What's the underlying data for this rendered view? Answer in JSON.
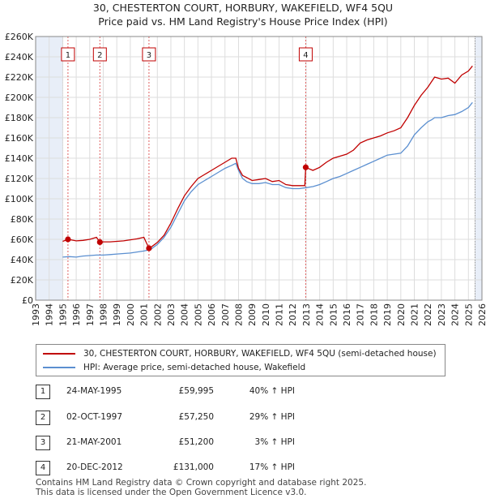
{
  "title_line1": "30, CHESTERTON COURT, HORBURY, WAKEFIELD, WF4 5QU",
  "title_line2": "Price paid vs. HM Land Registry's House Price Index (HPI)",
  "colors": {
    "property": "#c00000",
    "hpi": "#5b8fd0",
    "shade": "#e8eef8",
    "grid": "#dddddd",
    "sale_line": "#e06060"
  },
  "legend": {
    "property_label": "30, CHESTERTON COURT, HORBURY, WAKEFIELD, WF4 5QU (semi-detached house)",
    "hpi_label": "HPI: Average price, semi-detached house, Wakefield"
  },
  "sales": [
    {
      "num": "1",
      "date": "24-MAY-1995",
      "price": "£59,995",
      "hpi": "40% ↑ HPI"
    },
    {
      "num": "2",
      "date": "02-OCT-1997",
      "price": "£57,250",
      "hpi": "29% ↑ HPI"
    },
    {
      "num": "3",
      "date": "21-MAY-2001",
      "price": "£51,200",
      "hpi": "3% ↑ HPI"
    },
    {
      "num": "4",
      "date": "20-DEC-2012",
      "price": "£131,000",
      "hpi": "17% ↑ HPI"
    }
  ],
  "footer_line1": "Contains HM Land Registry data © Crown copyright and database right 2025.",
  "footer_line2": "This data is licensed under the Open Government Licence v3.0.",
  "chart_data": {
    "type": "line",
    "title": "30, CHESTERTON COURT, HORBURY, WAKEFIELD, WF4 5QU — Price paid vs. HM Land Registry's House Price Index (HPI)",
    "xlim": [
      1993,
      2026
    ],
    "ylim": [
      0,
      260000
    ],
    "x_ticks": [
      1993,
      1994,
      1995,
      1996,
      1997,
      1998,
      1999,
      2000,
      2001,
      2002,
      2003,
      2004,
      2005,
      2006,
      2007,
      2008,
      2009,
      2010,
      2011,
      2012,
      2013,
      2014,
      2015,
      2016,
      2017,
      2018,
      2019,
      2020,
      2021,
      2022,
      2023,
      2024,
      2025,
      2026
    ],
    "y_ticks": [
      0,
      20000,
      40000,
      60000,
      80000,
      100000,
      120000,
      140000,
      160000,
      180000,
      200000,
      220000,
      240000,
      260000
    ],
    "y_tick_labels": [
      "£0",
      "£20K",
      "£40K",
      "£60K",
      "£80K",
      "£100K",
      "£120K",
      "£140K",
      "£160K",
      "£180K",
      "£200K",
      "£220K",
      "£240K",
      "£260K"
    ],
    "data_start": 1995.0,
    "data_end": 2025.5,
    "sale_markers": [
      {
        "label": "1",
        "x": 1995.39,
        "y": 59995
      },
      {
        "label": "2",
        "x": 1997.75,
        "y": 57250
      },
      {
        "label": "3",
        "x": 2001.38,
        "y": 51200
      },
      {
        "label": "4",
        "x": 2012.97,
        "y": 131000
      }
    ],
    "series": [
      {
        "name": "30, CHESTERTON COURT, HORBURY, WAKEFIELD, WF4 5QU (semi-detached house)",
        "x": [
          1995.0,
          1995.39,
          1996.0,
          1996.5,
          1997.0,
          1997.5,
          1997.75,
          1998.0,
          1998.5,
          1999.0,
          1999.5,
          2000.0,
          2000.5,
          2001.0,
          2001.38,
          2001.6,
          2002.0,
          2002.5,
          2003.0,
          2003.5,
          2004.0,
          2004.5,
          2005.0,
          2005.5,
          2006.0,
          2006.5,
          2007.0,
          2007.5,
          2007.8,
          2008.0,
          2008.3,
          2008.6,
          2009.0,
          2009.5,
          2010.0,
          2010.5,
          2011.0,
          2011.5,
          2012.0,
          2012.5,
          2012.9,
          2012.97,
          2013.5,
          2014.0,
          2014.5,
          2015.0,
          2015.5,
          2016.0,
          2016.5,
          2017.0,
          2017.5,
          2018.0,
          2018.5,
          2019.0,
          2019.5,
          2020.0,
          2020.5,
          2021.0,
          2021.5,
          2022.0,
          2022.3,
          2022.5,
          2023.0,
          2023.5,
          2024.0,
          2024.5,
          2025.0,
          2025.3
        ],
        "values": [
          58000,
          59995,
          58500,
          59000,
          60000,
          62000,
          57250,
          57500,
          57500,
          58000,
          58500,
          59500,
          60500,
          62000,
          51200,
          53000,
          57000,
          64000,
          76000,
          90000,
          103000,
          112000,
          120000,
          124000,
          128000,
          132000,
          136000,
          140000,
          140000,
          130000,
          123000,
          121000,
          118000,
          119000,
          120000,
          117000,
          118000,
          114000,
          113000,
          113000,
          113000,
          131000,
          128000,
          131000,
          136000,
          140000,
          142000,
          144000,
          148000,
          155000,
          158000,
          160000,
          162000,
          165000,
          167000,
          170000,
          180000,
          192000,
          202000,
          210000,
          216000,
          220000,
          218000,
          219000,
          214000,
          222000,
          226000,
          231000
        ]
      },
      {
        "name": "HPI: Average price, semi-detached house, Wakefield",
        "x": [
          1995.0,
          1995.5,
          1996.0,
          1996.5,
          1997.0,
          1997.5,
          1998.0,
          1998.5,
          1999.0,
          1999.5,
          2000.0,
          2000.5,
          2001.0,
          2001.5,
          2002.0,
          2002.5,
          2003.0,
          2003.5,
          2004.0,
          2004.5,
          2005.0,
          2005.5,
          2006.0,
          2006.5,
          2007.0,
          2007.5,
          2007.8,
          2008.0,
          2008.3,
          2008.6,
          2009.0,
          2009.5,
          2010.0,
          2010.5,
          2011.0,
          2011.5,
          2012.0,
          2012.5,
          2013.0,
          2013.5,
          2014.0,
          2014.5,
          2015.0,
          2015.5,
          2016.0,
          2016.5,
          2017.0,
          2017.5,
          2018.0,
          2018.5,
          2019.0,
          2019.5,
          2020.0,
          2020.5,
          2021.0,
          2021.5,
          2022.0,
          2022.3,
          2022.5,
          2023.0,
          2023.5,
          2024.0,
          2024.5,
          2025.0,
          2025.3
        ],
        "values": [
          42500,
          43000,
          42500,
          43500,
          44000,
          44500,
          44500,
          45000,
          45500,
          46000,
          46500,
          47500,
          48500,
          50000,
          55000,
          62000,
          72000,
          85000,
          98000,
          107000,
          114000,
          118000,
          122000,
          126000,
          130000,
          133000,
          135000,
          128000,
          120000,
          117000,
          115000,
          115000,
          116000,
          114000,
          114000,
          111000,
          110000,
          110000,
          111000,
          112000,
          114000,
          117000,
          120000,
          122000,
          125000,
          128000,
          131000,
          134000,
          137000,
          140000,
          143000,
          144000,
          145000,
          152000,
          163000,
          170000,
          176000,
          178000,
          180000,
          180000,
          182000,
          183000,
          186000,
          190000,
          195000
        ]
      }
    ]
  }
}
